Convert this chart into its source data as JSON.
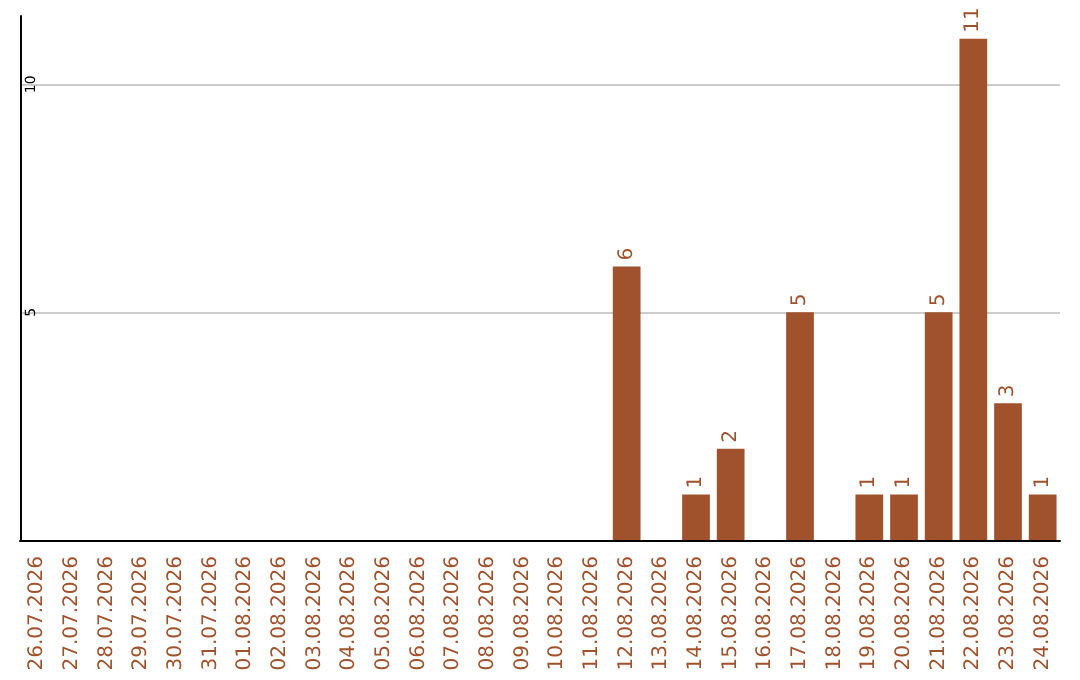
{
  "chart_data": {
    "type": "bar",
    "categories": [
      "26.07.2026",
      "27.07.2026",
      "28.07.2026",
      "29.07.2026",
      "30.07.2026",
      "31.07.2026",
      "01.08.2026",
      "02.08.2026",
      "03.08.2026",
      "04.08.2026",
      "05.08.2026",
      "06.08.2026",
      "07.08.2026",
      "08.08.2026",
      "09.08.2026",
      "10.08.2026",
      "11.08.2026",
      "12.08.2026",
      "13.08.2026",
      "14.08.2026",
      "15.08.2026",
      "16.08.2026",
      "17.08.2026",
      "18.08.2026",
      "19.08.2026",
      "20.08.2026",
      "21.08.2026",
      "22.08.2026",
      "23.08.2026",
      "24.08.2026"
    ],
    "values": [
      0,
      0,
      0,
      0,
      0,
      0,
      0,
      0,
      0,
      0,
      0,
      0,
      0,
      0,
      0,
      0,
      0,
      6,
      0,
      1,
      2,
      0,
      5,
      0,
      1,
      1,
      5,
      11,
      3,
      1
    ],
    "value_labels": [
      null,
      null,
      null,
      null,
      null,
      null,
      null,
      null,
      null,
      null,
      null,
      null,
      null,
      null,
      null,
      null,
      null,
      "6",
      null,
      "1",
      "2",
      null,
      "5",
      null,
      "1",
      "1",
      "5",
      "11",
      "3",
      "1"
    ],
    "color": "#a0522d",
    "ylim": [
      0,
      11.5
    ],
    "yticks": [
      5,
      10
    ],
    "grid": "y"
  }
}
